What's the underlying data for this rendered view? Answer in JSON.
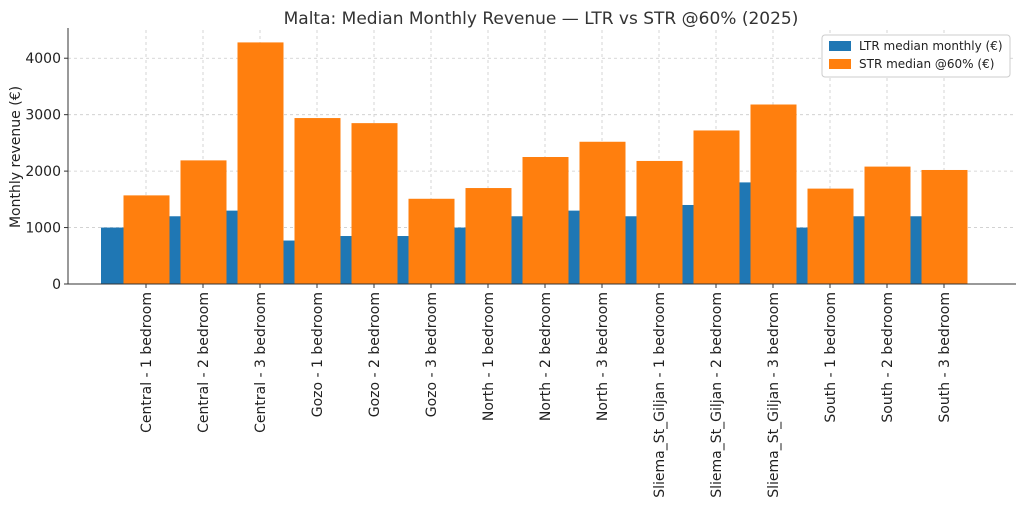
{
  "chart_data": {
    "type": "bar",
    "title": "Malta: Median Monthly Revenue — LTR vs STR @60% (2025)",
    "xlabel": "",
    "ylabel": "Monthly revenue (€)",
    "ylim": [
      0,
      4500
    ],
    "yticks": [
      0,
      1000,
      2000,
      3000,
      4000
    ],
    "grid": true,
    "legend_position": "top-right",
    "categories": [
      "Central - 1 bedroom",
      "Central - 2 bedroom",
      "Central - 3 bedroom",
      "Gozo - 1 bedroom",
      "Gozo - 2 bedroom",
      "Gozo - 3 bedroom",
      "North - 1 bedroom",
      "North - 2 bedroom",
      "North - 3 bedroom",
      "Sliema_St_Giljan - 1 bedroom",
      "Sliema_St_Giljan - 2 bedroom",
      "Sliema_St_Giljan - 3 bedroom",
      "South - 1 bedroom",
      "South - 2 bedroom",
      "South - 3 bedroom"
    ],
    "series": [
      {
        "name": "LTR median monthly (€)",
        "color": "#1f77b4",
        "values": [
          1000,
          1200,
          1300,
          770,
          850,
          850,
          1000,
          1200,
          1300,
          1200,
          1400,
          1800,
          1000,
          1200,
          1200
        ]
      },
      {
        "name": "STR median @60% (€)",
        "color": "#ff7f0e",
        "values": [
          1570,
          2190,
          4280,
          2940,
          2850,
          1510,
          1700,
          2250,
          2520,
          2180,
          2720,
          3180,
          1690,
          2080,
          2020
        ]
      }
    ]
  }
}
